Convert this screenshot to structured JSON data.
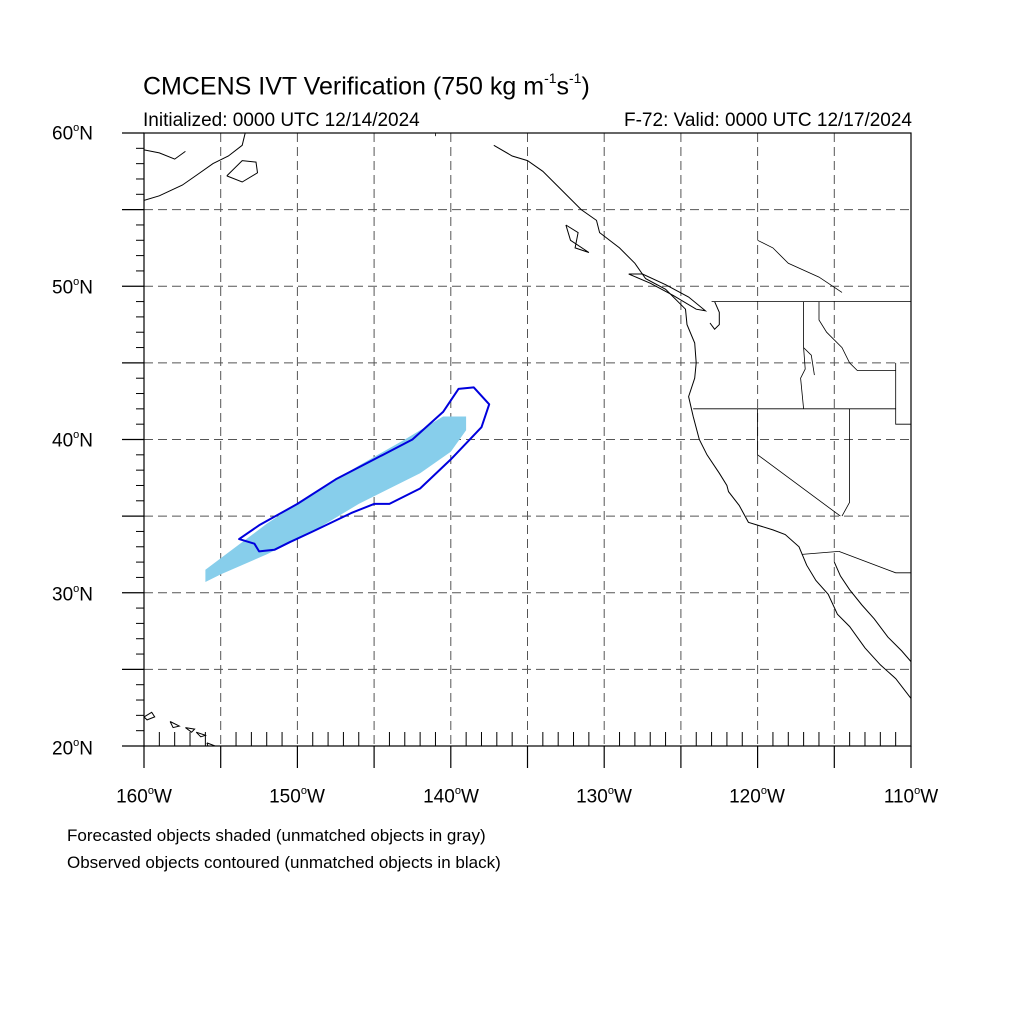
{
  "title": {
    "prefix": "CMCENS IVT Verification (750 kg m",
    "exp1": "-1",
    "mid": "s",
    "exp2": "-1",
    "suffix": ")"
  },
  "initialized": "Initialized: 0000 UTC 12/14/2024",
  "valid": "F-72: Valid: 0000 UTC 12/17/2024",
  "degree_mark": "o",
  "lat_labels": [
    {
      "num": "60",
      "hemi": "N"
    },
    {
      "num": "50",
      "hemi": "N"
    },
    {
      "num": "40",
      "hemi": "N"
    },
    {
      "num": "30",
      "hemi": "N"
    },
    {
      "num": "20",
      "hemi": "N"
    }
  ],
  "lon_labels": [
    {
      "num": "160",
      "hemi": "W"
    },
    {
      "num": "150",
      "hemi": "W"
    },
    {
      "num": "140",
      "hemi": "W"
    },
    {
      "num": "130",
      "hemi": "W"
    },
    {
      "num": "120",
      "hemi": "W"
    },
    {
      "num": "110",
      "hemi": "W"
    }
  ],
  "notes": {
    "forecast": "Forecasted objects shaded (unmatched objects in gray)",
    "observed": "Observed objects contoured (unmatched objects in black)"
  },
  "colors": {
    "forecast_fill": "#87ceeb",
    "observed_contour": "#0000dd",
    "grid": "#555555",
    "coast": "#000000"
  },
  "map_extent": {
    "lon_min": -160,
    "lon_max": -110,
    "lat_min": 20,
    "lat_max": 60
  },
  "objects": {
    "forecast_shaded": [
      [
        -156,
        30.7
      ],
      [
        -155,
        31.2
      ],
      [
        -152,
        32.5
      ],
      [
        -149,
        34
      ],
      [
        -146,
        35.8
      ],
      [
        -142,
        37.8
      ],
      [
        -140,
        39.2
      ],
      [
        -139,
        40.6
      ],
      [
        -139,
        41.5
      ],
      [
        -140.5,
        41.5
      ],
      [
        -143,
        40
      ],
      [
        -146,
        38.3
      ],
      [
        -149,
        36.5
      ],
      [
        -152,
        34.5
      ],
      [
        -154,
        33
      ],
      [
        -156,
        31.5
      ]
    ],
    "observed_contour": [
      [
        -153.8,
        33.5
      ],
      [
        -152.5,
        34.4
      ],
      [
        -150,
        35.8
      ],
      [
        -147.5,
        37.4
      ],
      [
        -145,
        38.7
      ],
      [
        -142.5,
        40
      ],
      [
        -140.5,
        41.8
      ],
      [
        -139.5,
        43.3
      ],
      [
        -138.5,
        43.4
      ],
      [
        -137.5,
        42.3
      ],
      [
        -138,
        40.8
      ],
      [
        -140,
        38.7
      ],
      [
        -142,
        36.8
      ],
      [
        -144,
        35.8
      ],
      [
        -145,
        35.8
      ],
      [
        -146.5,
        35.2
      ],
      [
        -149,
        34
      ],
      [
        -150.5,
        33.3
      ],
      [
        -151.5,
        32.8
      ],
      [
        -152.5,
        32.7
      ],
      [
        -152.8,
        33.2
      ],
      [
        -153.8,
        33.5
      ]
    ]
  },
  "coastlines": [
    [
      [
        -137.2,
        59.2
      ],
      [
        -136,
        58.5
      ],
      [
        -135,
        58.2
      ],
      [
        -134,
        57.5
      ],
      [
        -133,
        56.5
      ],
      [
        -131.5,
        55
      ],
      [
        -130.5,
        54.3
      ],
      [
        -130.3,
        53.5
      ],
      [
        -129,
        52.5
      ],
      [
        -128,
        51.5
      ],
      [
        -127.3,
        50.5
      ],
      [
        -126,
        49.8
      ],
      [
        -124.7,
        48.5
      ],
      [
        -124.6,
        47.5
      ],
      [
        -124.1,
        46.3
      ],
      [
        -124,
        45
      ],
      [
        -124.1,
        44
      ],
      [
        -124.5,
        42.8
      ],
      [
        -124.2,
        41.5
      ],
      [
        -123.8,
        40
      ],
      [
        -123.3,
        39
      ],
      [
        -122.5,
        37.8
      ],
      [
        -122,
        37
      ],
      [
        -121.9,
        36.6
      ],
      [
        -121.2,
        35.7
      ],
      [
        -120.6,
        34.6
      ],
      [
        -119,
        34.1
      ],
      [
        -118.2,
        33.8
      ],
      [
        -117.3,
        33
      ],
      [
        -116.8,
        31.8
      ],
      [
        -116.2,
        30.8
      ],
      [
        -115.4,
        29.9
      ],
      [
        -114.8,
        28.6
      ],
      [
        -114,
        27.8
      ],
      [
        -113,
        26.4
      ],
      [
        -112,
        25.3
      ],
      [
        -111,
        24.4
      ],
      [
        -110,
        23.1
      ]
    ],
    [
      [
        -115,
        32
      ],
      [
        -114.6,
        31.1
      ],
      [
        -114,
        30.2
      ],
      [
        -113.2,
        29.2
      ],
      [
        -112.4,
        28.3
      ],
      [
        -111.5,
        27.1
      ],
      [
        -110.6,
        26.2
      ],
      [
        -110,
        25.5
      ]
    ],
    [
      [
        -160,
        55.6
      ],
      [
        -159,
        55.9
      ],
      [
        -157.5,
        56.6
      ],
      [
        -156.5,
        57.3
      ],
      [
        -155.5,
        58
      ],
      [
        -154.5,
        58.5
      ],
      [
        -153.6,
        59.2
      ],
      [
        -153.4,
        60
      ]
    ],
    [
      [
        -160,
        58.9
      ],
      [
        -159,
        58.7
      ],
      [
        -158,
        58.3
      ],
      [
        -157.3,
        58.8
      ]
    ],
    [
      [
        -154.6,
        57.2
      ],
      [
        -153.6,
        56.8
      ],
      [
        -152.6,
        57.4
      ],
      [
        -152.7,
        58.1
      ],
      [
        -153.6,
        58.2
      ],
      [
        -154.6,
        57.2
      ]
    ],
    [
      [
        -160,
        21.9
      ],
      [
        -159.5,
        22.2
      ],
      [
        -159.3,
        21.9
      ],
      [
        -159.8,
        21.7
      ],
      [
        -160,
        21.9
      ]
    ],
    [
      [
        -158.3,
        21.6
      ],
      [
        -157.7,
        21.3
      ],
      [
        -158.1,
        21.2
      ],
      [
        -158.3,
        21.6
      ]
    ],
    [
      [
        -157.3,
        21.2
      ],
      [
        -156.7,
        21.1
      ],
      [
        -156.9,
        20.9
      ],
      [
        -157.3,
        21.2
      ]
    ],
    [
      [
        -156.6,
        20.9
      ],
      [
        -156,
        20.7
      ],
      [
        -156.3,
        20.6
      ],
      [
        -156.6,
        20.9
      ]
    ],
    [
      [
        -155.9,
        20.2
      ],
      [
        -155.1,
        19.9
      ],
      [
        -155.7,
        19.6
      ],
      [
        -155.9,
        20.2
      ]
    ],
    [
      [
        -132.5,
        54
      ],
      [
        -131.7,
        53.5
      ],
      [
        -131.9,
        52.5
      ],
      [
        -131,
        52.2
      ],
      [
        -132.2,
        53
      ],
      [
        -132.5,
        54
      ]
    ],
    [
      [
        -128.4,
        50.8
      ],
      [
        -127,
        50.2
      ],
      [
        -125.5,
        49.4
      ],
      [
        -124,
        48.5
      ],
      [
        -123.4,
        48.4
      ],
      [
        -124.5,
        49.3
      ],
      [
        -126,
        50.1
      ],
      [
        -127.5,
        50.8
      ],
      [
        -128.4,
        50.8
      ]
    ],
    [
      [
        -122.8,
        49
      ],
      [
        -122.5,
        48.3
      ],
      [
        -122.5,
        47.5
      ],
      [
        -122.8,
        47.2
      ],
      [
        -123.1,
        47.6
      ]
    ]
  ],
  "borders": [
    [
      [
        -123,
        49
      ],
      [
        -110,
        49
      ]
    ],
    [
      [
        -141,
        60
      ],
      [
        -141,
        59.8
      ]
    ],
    [
      [
        -124.2,
        42
      ],
      [
        -117,
        42
      ],
      [
        -111,
        42
      ]
    ],
    [
      [
        -120,
        42
      ],
      [
        -120,
        39
      ],
      [
        -114.6,
        35
      ]
    ],
    [
      [
        -114.7,
        32.7
      ],
      [
        -111,
        31.3
      ],
      [
        -110,
        31.3
      ]
    ],
    [
      [
        -117.1,
        32.5
      ],
      [
        -114.7,
        32.7
      ]
    ],
    [
      [
        -117,
        49
      ],
      [
        -117,
        46
      ],
      [
        -116.9,
        44.6
      ],
      [
        -117.2,
        44
      ],
      [
        -117,
        42
      ]
    ],
    [
      [
        -116,
        49
      ],
      [
        -116,
        47.8
      ],
      [
        -115.5,
        47
      ],
      [
        -114.5,
        46
      ],
      [
        -114,
        45
      ],
      [
        -113.5,
        44.5
      ],
      [
        -111,
        44.5
      ]
    ],
    [
      [
        -114,
        42
      ],
      [
        -114,
        35.9
      ],
      [
        -114.5,
        35
      ]
    ],
    [
      [
        -111,
        45
      ],
      [
        -111,
        41
      ],
      [
        -110,
        41
      ]
    ],
    [
      [
        -117,
        46
      ],
      [
        -116.5,
        45.5
      ],
      [
        -116.3,
        44.2
      ]
    ],
    [
      [
        -120,
        53
      ],
      [
        -119,
        52.5
      ],
      [
        -118,
        51.5
      ],
      [
        -116,
        50.6
      ],
      [
        -114.5,
        49.6
      ]
    ]
  ]
}
